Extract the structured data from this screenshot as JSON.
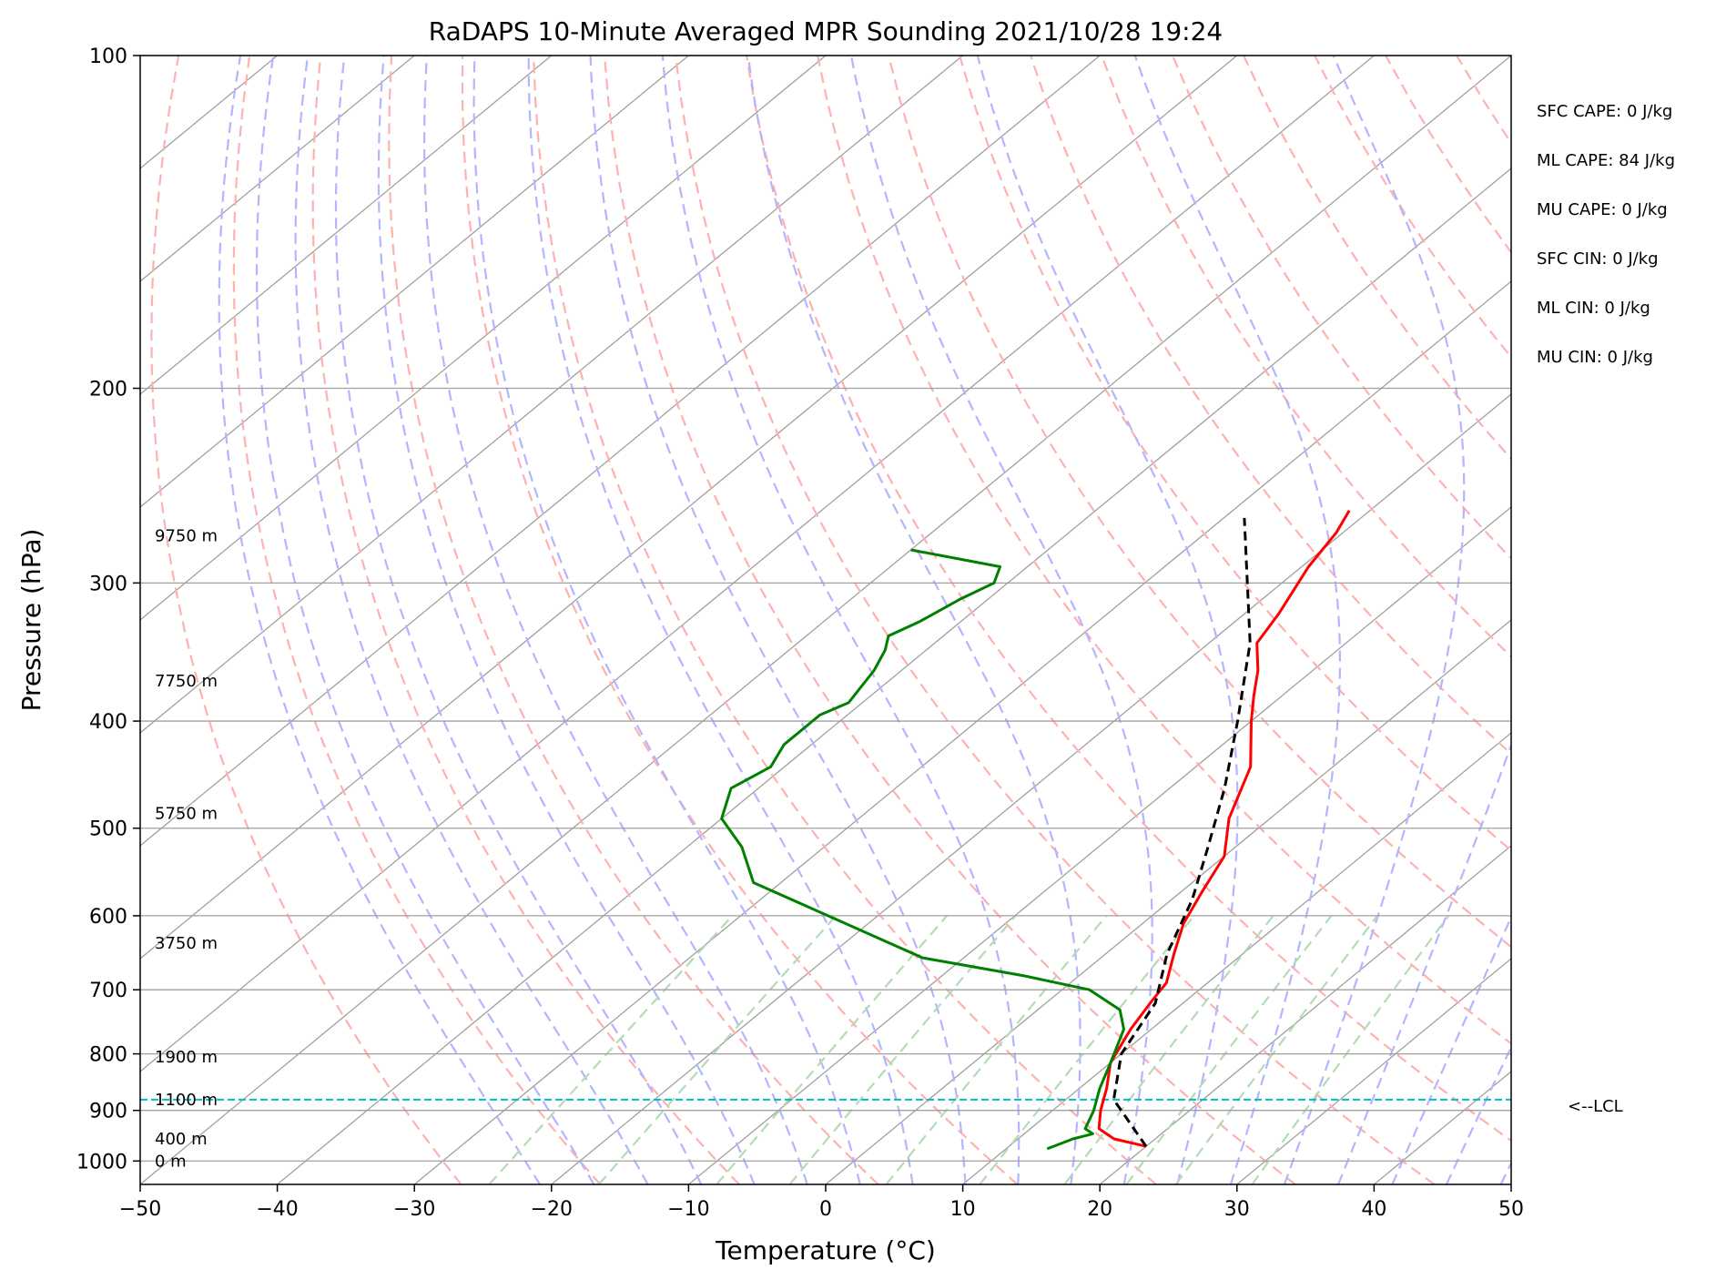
{
  "title": "RaDAPS 10-Minute Averaged MPR Sounding 2021/10/28 19:24",
  "chart_data": {
    "type": "line",
    "subtype": "skew-t log-p",
    "title": "RaDAPS 10-Minute Averaged MPR Sounding 2021/10/28 19:24",
    "xlabel": "Temperature (°C)",
    "ylabel": "Pressure (hPa)",
    "xlim": [
      -50,
      50
    ],
    "ylim": [
      1050,
      100
    ],
    "yscale": "log",
    "grid": true,
    "x_ticks": [
      -50,
      -40,
      -30,
      -20,
      -10,
      0,
      10,
      20,
      30,
      40,
      50
    ],
    "x_tick_labels": [
      "−50",
      "−40",
      "−30",
      "−20",
      "−10",
      "0",
      "10",
      "20",
      "30",
      "40",
      "50"
    ],
    "y_ticks": [
      1000,
      900,
      800,
      700,
      600,
      500,
      400,
      300,
      200,
      100
    ],
    "y_tick_labels": [
      "1000",
      "900",
      "800",
      "700",
      "600",
      "500",
      "400",
      "300",
      "200",
      "100"
    ],
    "series": [
      {
        "role": "temperature",
        "color": "#ff0000",
        "points": [
          [
            20,
            970
          ],
          [
            17,
            955
          ],
          [
            16,
            945
          ],
          [
            15,
            935
          ],
          [
            13.5,
            900
          ],
          [
            12,
            860
          ],
          [
            10,
            815
          ],
          [
            8.5,
            760
          ],
          [
            7.5,
            715
          ],
          [
            7,
            690
          ],
          [
            5,
            650
          ],
          [
            3,
            610
          ],
          [
            1.5,
            570
          ],
          [
            0,
            530
          ],
          [
            -3,
            490
          ],
          [
            -6,
            440
          ],
          [
            -10,
            400
          ],
          [
            -12,
            380
          ],
          [
            -14,
            360
          ],
          [
            -16.5,
            340
          ],
          [
            -17.5,
            320
          ],
          [
            -19.5,
            290
          ],
          [
            -20.5,
            270
          ],
          [
            -21.5,
            258
          ]
        ]
      },
      {
        "role": "dewpoint",
        "color": "#008000",
        "points": [
          [
            13,
            975
          ],
          [
            13.5,
            965
          ],
          [
            14,
            955
          ],
          [
            15,
            945
          ],
          [
            14,
            935
          ],
          [
            13,
            900
          ],
          [
            11.5,
            860
          ],
          [
            10,
            815
          ],
          [
            8,
            760
          ],
          [
            6,
            730
          ],
          [
            2,
            700
          ],
          [
            -4,
            680
          ],
          [
            -13,
            655
          ],
          [
            -32,
            560
          ],
          [
            -36,
            520
          ],
          [
            -40,
            490
          ],
          [
            -42,
            460
          ],
          [
            -41,
            440
          ],
          [
            -42,
            420
          ],
          [
            -42,
            395
          ],
          [
            -41,
            385
          ],
          [
            -42,
            360
          ],
          [
            -43,
            345
          ],
          [
            -44,
            335
          ],
          [
            -43,
            325
          ],
          [
            -42,
            310
          ],
          [
            -41,
            300
          ],
          [
            -42,
            290
          ],
          [
            -50,
            280
          ]
        ]
      },
      {
        "role": "parcel",
        "color": "#000000",
        "points": [
          [
            20,
            970
          ],
          [
            13.5,
            880
          ],
          [
            10,
            800
          ],
          [
            8,
            720
          ],
          [
            4.5,
            650
          ],
          [
            1.5,
            580
          ],
          [
            -2,
            520
          ],
          [
            -6,
            460
          ],
          [
            -11,
            400
          ],
          [
            -17,
            340
          ],
          [
            -28.5,
            262
          ]
        ]
      }
    ],
    "height_labels": [
      {
        "pressure": 1000,
        "text": "0 m"
      },
      {
        "pressure": 955,
        "text": "400 m"
      },
      {
        "pressure": 880,
        "text": "1100 m"
      },
      {
        "pressure": 805,
        "text": "1900 m"
      },
      {
        "pressure": 635,
        "text": "3750 m"
      },
      {
        "pressure": 485,
        "text": "5750 m"
      },
      {
        "pressure": 368,
        "text": "7750 m"
      },
      {
        "pressure": 272,
        "text": "9750 m"
      }
    ],
    "lcl": {
      "pressure": 880,
      "label": "<--LCL",
      "color": "#00bfbf"
    },
    "background_lines": {
      "isotherm_color": "#a0a0a0",
      "dry_adiabat_color": "#ffb0b0",
      "moist_adiabat_color": "#b4b4ff",
      "mixing_ratio_color": "#b4dcb4"
    },
    "stats": [
      "SFC CAPE: 0 J/kg",
      "ML CAPE: 84 J/kg",
      "MU CAPE: 0 J/kg",
      "SFC CIN: 0 J/kg",
      "ML CIN: 0 J/kg",
      "MU CIN: 0 J/kg"
    ]
  }
}
